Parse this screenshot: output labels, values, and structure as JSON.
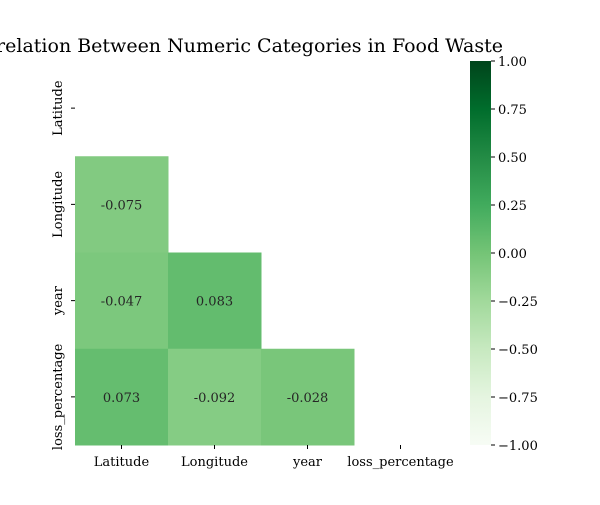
{
  "chart_data": {
    "type": "heatmap",
    "title": "Correlation Between Numeric Categories in Food Waste",
    "variables": [
      "Latitude",
      "Longitude",
      "year",
      "loss_percentage"
    ],
    "mask": "upper-triangle-and-diagonal",
    "cells": [
      {
        "row": "Longitude",
        "col": "Latitude",
        "value": -0.075,
        "label": "-0.075"
      },
      {
        "row": "year",
        "col": "Latitude",
        "value": -0.047,
        "label": "-0.047"
      },
      {
        "row": "year",
        "col": "Longitude",
        "value": 0.083,
        "label": "0.083"
      },
      {
        "row": "loss_percentage",
        "col": "Latitude",
        "value": 0.073,
        "label": "0.073"
      },
      {
        "row": "loss_percentage",
        "col": "Longitude",
        "value": -0.092,
        "label": "-0.092"
      },
      {
        "row": "loss_percentage",
        "col": "year",
        "value": -0.028,
        "label": "-0.028"
      }
    ],
    "colormap": "Greens",
    "colorbar": {
      "vmin": -1.0,
      "vmax": 1.0,
      "ticks": [
        "1.00",
        "0.75",
        "0.50",
        "0.25",
        "0.00",
        "−0.25",
        "−0.50",
        "−0.75",
        "−1.00"
      ],
      "tick_values": [
        1.0,
        0.75,
        0.5,
        0.25,
        0.0,
        -0.25,
        -0.5,
        -0.75,
        -1.0
      ]
    },
    "grid": false,
    "legend": "colorbar-right"
  }
}
